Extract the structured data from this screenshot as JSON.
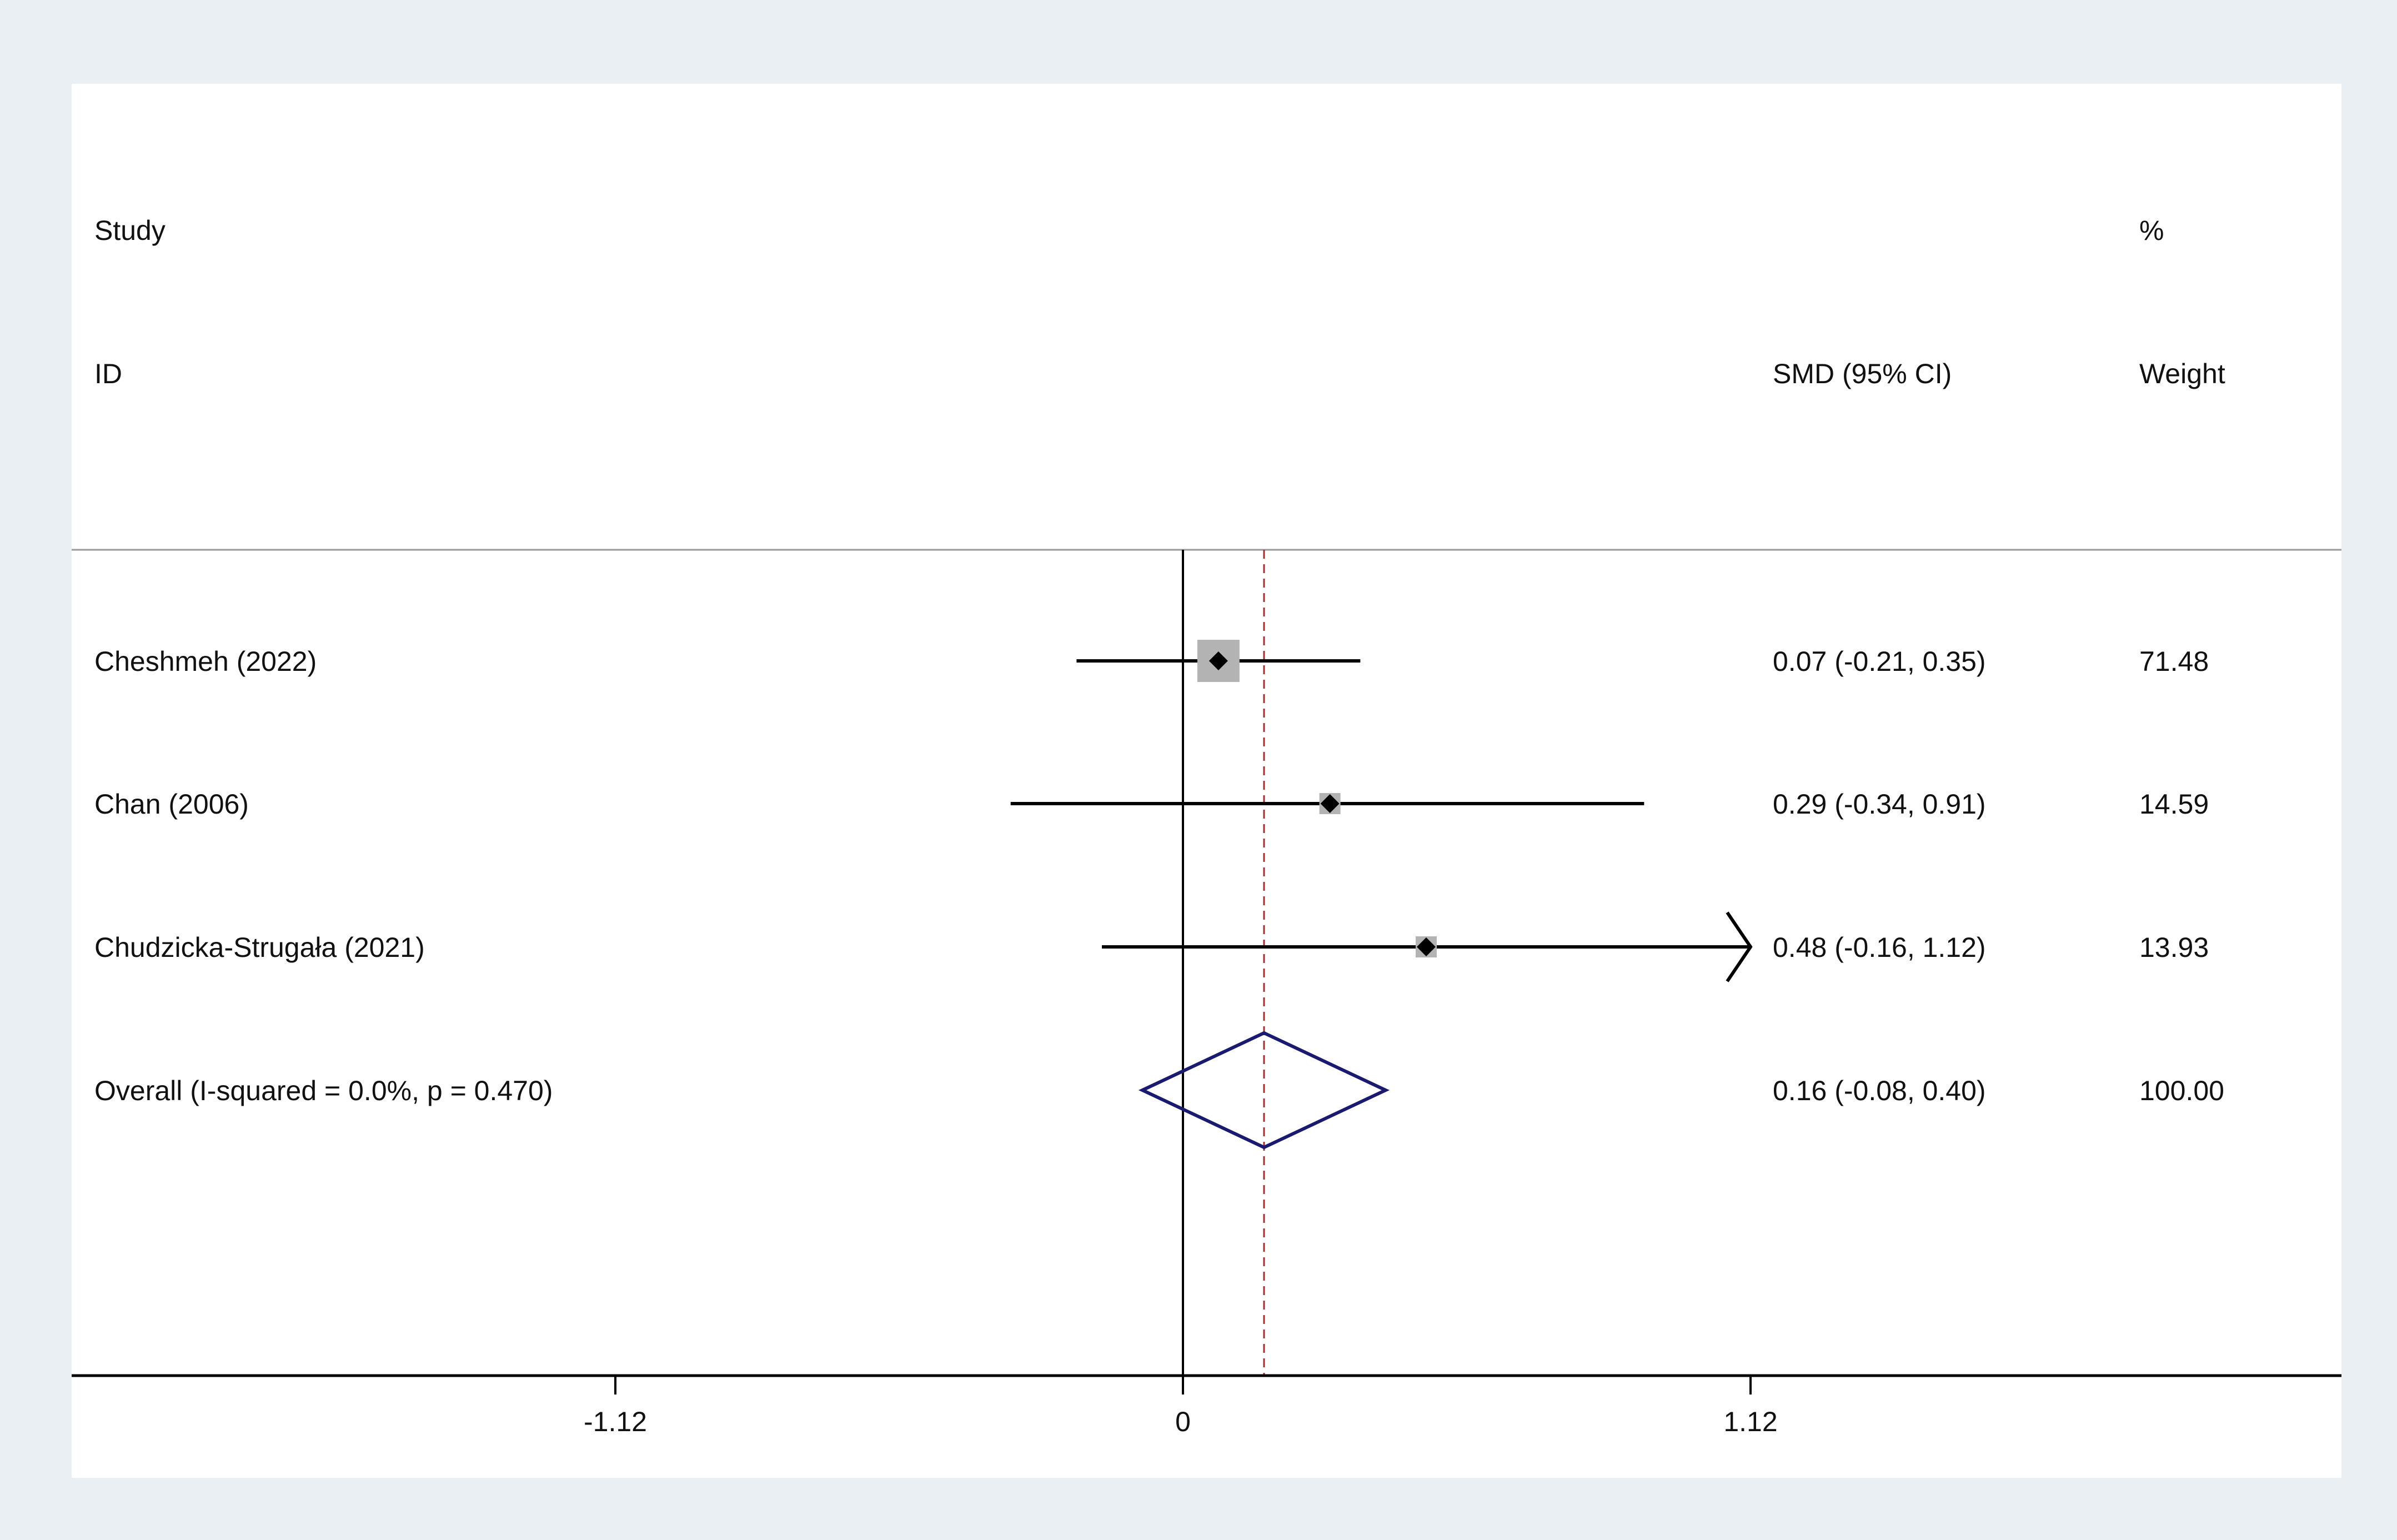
{
  "headers": {
    "study_line1": "Study",
    "study_line2": "ID",
    "effect_label": "SMD (95% CI)",
    "weight_line1": "%",
    "weight_line2": "Weight"
  },
  "chart_data": {
    "type": "forest",
    "xlabel": "",
    "ylabel": "",
    "xlim": [
      -2.0,
      2.08
    ],
    "xticks": [
      -1.12,
      0,
      1.12
    ],
    "xtick_labels": [
      "-1.12",
      "0",
      "1.12"
    ],
    "null_line": 0,
    "pooled_line": 0.16,
    "arrow_clip_upper": 1.12,
    "studies": [
      {
        "label": "Cheshmeh (2022)",
        "smd": 0.07,
        "ci_low": -0.21,
        "ci_high": 0.35,
        "weight": 71.48,
        "ci_text": "0.07 (-0.21, 0.35)",
        "weight_text": "71.48"
      },
      {
        "label": "Chan (2006)",
        "smd": 0.29,
        "ci_low": -0.34,
        "ci_high": 0.91,
        "weight": 14.59,
        "ci_text": "0.29 (-0.34, 0.91)",
        "weight_text": "14.59"
      },
      {
        "label": "Chudzicka-Strugała (2021)",
        "smd": 0.48,
        "ci_low": -0.16,
        "ci_high": 1.12,
        "weight": 13.93,
        "ci_text": "0.48 (-0.16, 1.12)",
        "weight_text": "13.93"
      }
    ],
    "overall": {
      "label": "Overall  (I-squared = 0.0%, p = 0.470)",
      "smd": 0.16,
      "ci_low": -0.08,
      "ci_high": 0.4,
      "ci_text": "0.16 (-0.08, 0.40)",
      "weight_text": "100.00"
    },
    "colors": {
      "marker": "#000000",
      "weight_box": "#b3b3b3",
      "diamond": "#1a1a6e",
      "pooled_line": "#a03030",
      "axis": "#000000",
      "separator": "#999999"
    }
  }
}
